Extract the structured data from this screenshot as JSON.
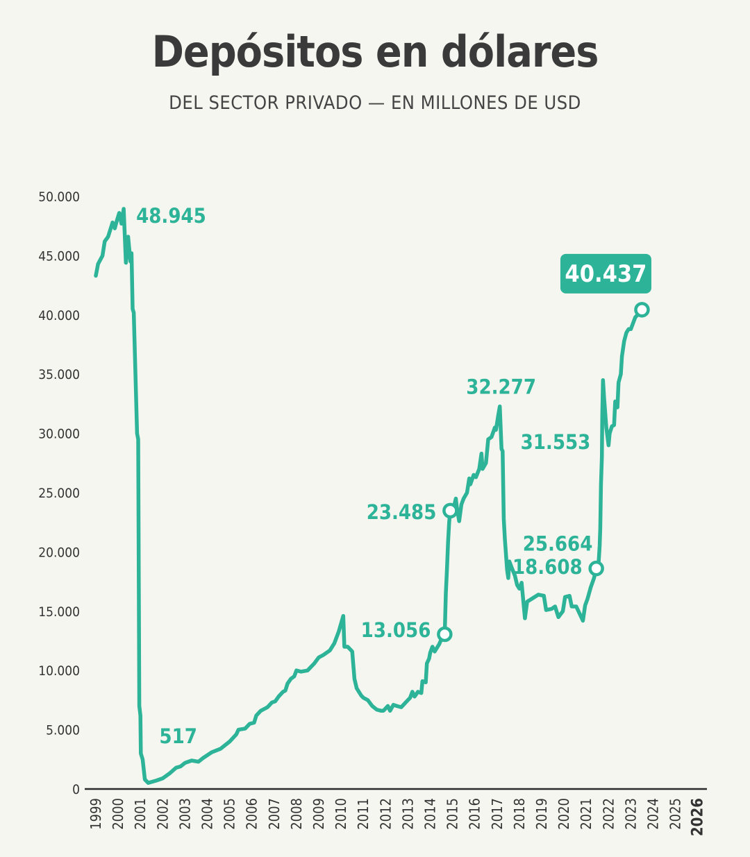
{
  "colors": {
    "line": "#2cb398",
    "background": "#f5f6f0",
    "title": "#3a3a3a",
    "axis": "#333333"
  },
  "chart_data": {
    "type": "line",
    "title": "Depósitos en dólares",
    "subtitle": "DEL SECTOR PRIVADO — EN MILLONES DE USD",
    "xlabel": "",
    "ylabel": "",
    "ylim": [
      0,
      50000
    ],
    "grid": false,
    "y_ticks": [
      0,
      5000,
      10000,
      15000,
      20000,
      25000,
      30000,
      35000,
      40000,
      45000,
      50000
    ],
    "y_tick_labels": [
      "0",
      "5.000",
      "10.000",
      "15.000",
      "20.000",
      "25.000",
      "30.000",
      "35.000",
      "40.000",
      "45.000",
      "50.000"
    ],
    "x_tick_labels": [
      "1999",
      "2000",
      "2001",
      "2002",
      "2003",
      "2004",
      "2005",
      "2006",
      "2007",
      "2008",
      "2009",
      "2010",
      "2011",
      "2012",
      "2013",
      "2014",
      "2015",
      "2016",
      "2017",
      "2018",
      "2019",
      "2020",
      "2021",
      "2022",
      "2023",
      "2024",
      "2025",
      "2026"
    ],
    "x_tick_bold": [
      "2026"
    ],
    "series": [
      {
        "points": [
          [
            1999.0,
            43300
          ],
          [
            1999.1,
            44300
          ],
          [
            1999.3,
            45000
          ],
          [
            1999.4,
            46200
          ],
          [
            1999.55,
            46600
          ],
          [
            1999.65,
            47200
          ],
          [
            1999.75,
            47800
          ],
          [
            1999.85,
            47300
          ],
          [
            1999.95,
            48000
          ],
          [
            2000.05,
            48600
          ],
          [
            2000.15,
            47700
          ],
          [
            2000.25,
            48945
          ],
          [
            2000.35,
            44400
          ],
          [
            2000.45,
            46600
          ],
          [
            2000.55,
            44500
          ],
          [
            2000.6,
            45200
          ],
          [
            2000.65,
            40500
          ],
          [
            2000.7,
            40200
          ],
          [
            2000.85,
            30000
          ],
          [
            2000.9,
            29500
          ],
          [
            2000.95,
            7000
          ],
          [
            2001.0,
            6200
          ],
          [
            2001.02,
            3000
          ],
          [
            2001.1,
            2500
          ],
          [
            2001.2,
            800
          ],
          [
            2001.35,
            517
          ],
          [
            2001.7,
            700
          ],
          [
            2002.0,
            900
          ],
          [
            2002.3,
            1300
          ],
          [
            2002.6,
            1800
          ],
          [
            2002.8,
            1900
          ],
          [
            2003.0,
            2200
          ],
          [
            2003.3,
            2400
          ],
          [
            2003.6,
            2300
          ],
          [
            2003.8,
            2600
          ],
          [
            2004.2,
            3100
          ],
          [
            2004.6,
            3400
          ],
          [
            2005.0,
            4000
          ],
          [
            2005.3,
            4600
          ],
          [
            2005.4,
            5000
          ],
          [
            2005.7,
            5100
          ],
          [
            2005.9,
            5500
          ],
          [
            2006.1,
            5600
          ],
          [
            2006.2,
            6200
          ],
          [
            2006.4,
            6600
          ],
          [
            2006.7,
            6900
          ],
          [
            2006.9,
            7300
          ],
          [
            2007.05,
            7400
          ],
          [
            2007.2,
            7800
          ],
          [
            2007.4,
            8200
          ],
          [
            2007.5,
            8300
          ],
          [
            2007.6,
            8900
          ],
          [
            2007.75,
            9300
          ],
          [
            2007.9,
            9500
          ],
          [
            2008.0,
            10000
          ],
          [
            2008.2,
            9900
          ],
          [
            2008.5,
            10000
          ],
          [
            2008.8,
            10600
          ],
          [
            2009.0,
            11100
          ],
          [
            2009.2,
            11300
          ],
          [
            2009.5,
            11700
          ],
          [
            2009.7,
            12300
          ],
          [
            2009.9,
            13300
          ],
          [
            2010.1,
            14600
          ],
          [
            2010.15,
            12000
          ],
          [
            2010.3,
            12000
          ],
          [
            2010.5,
            11600
          ],
          [
            2010.6,
            9300
          ],
          [
            2010.7,
            8500
          ],
          [
            2010.9,
            7900
          ],
          [
            2011.0,
            7700
          ],
          [
            2011.2,
            7500
          ],
          [
            2011.4,
            7000
          ],
          [
            2011.6,
            6700
          ],
          [
            2011.8,
            6600
          ],
          [
            2011.9,
            6600
          ],
          [
            2012.0,
            6800
          ],
          [
            2012.1,
            7000
          ],
          [
            2012.2,
            6600
          ],
          [
            2012.35,
            7100
          ],
          [
            2012.5,
            7000
          ],
          [
            2012.7,
            6900
          ],
          [
            2012.9,
            7300
          ],
          [
            2013.1,
            7700
          ],
          [
            2013.2,
            8200
          ],
          [
            2013.3,
            7800
          ],
          [
            2013.45,
            8200
          ],
          [
            2013.6,
            8100
          ],
          [
            2013.65,
            9100
          ],
          [
            2013.8,
            9000
          ],
          [
            2013.85,
            10600
          ],
          [
            2013.95,
            11000
          ],
          [
            2014.0,
            11500
          ],
          [
            2014.1,
            12000
          ],
          [
            2014.2,
            11600
          ],
          [
            2014.4,
            12200
          ],
          [
            2014.6,
            13056
          ],
          [
            2014.65,
            13056
          ],
          [
            2014.7,
            16500
          ],
          [
            2014.75,
            18500
          ],
          [
            2014.8,
            20800
          ],
          [
            2014.85,
            22500
          ],
          [
            2014.9,
            23485
          ],
          [
            2015.05,
            23700
          ],
          [
            2015.15,
            24500
          ],
          [
            2015.2,
            23700
          ],
          [
            2015.3,
            22600
          ],
          [
            2015.4,
            24000
          ],
          [
            2015.5,
            24500
          ],
          [
            2015.65,
            25000
          ],
          [
            2015.75,
            26200
          ],
          [
            2015.8,
            25700
          ],
          [
            2015.95,
            26500
          ],
          [
            2016.05,
            26300
          ],
          [
            2016.2,
            27000
          ],
          [
            2016.3,
            28300
          ],
          [
            2016.35,
            27000
          ],
          [
            2016.5,
            27500
          ],
          [
            2016.6,
            29500
          ],
          [
            2016.75,
            29700
          ],
          [
            2016.9,
            30500
          ],
          [
            2016.95,
            30300
          ],
          [
            2017.05,
            31500
          ],
          [
            2017.12,
            32277
          ],
          [
            2017.2,
            28700
          ],
          [
            2017.25,
            28500
          ],
          [
            2017.3,
            22800
          ],
          [
            2017.35,
            21100
          ],
          [
            2017.45,
            18500
          ],
          [
            2017.5,
            17800
          ],
          [
            2017.55,
            19200
          ],
          [
            2017.65,
            18700
          ],
          [
            2017.8,
            18000
          ],
          [
            2017.9,
            17200
          ],
          [
            2018.0,
            16900
          ],
          [
            2018.1,
            17400
          ],
          [
            2018.25,
            14400
          ],
          [
            2018.35,
            15800
          ],
          [
            2018.6,
            16100
          ],
          [
            2018.85,
            16400
          ],
          [
            2019.1,
            16300
          ],
          [
            2019.2,
            15100
          ],
          [
            2019.45,
            15200
          ],
          [
            2019.6,
            15400
          ],
          [
            2019.75,
            14500
          ],
          [
            2019.95,
            15000
          ],
          [
            2020.05,
            16200
          ],
          [
            2020.25,
            16300
          ],
          [
            2020.35,
            15400
          ],
          [
            2020.55,
            15400
          ],
          [
            2020.65,
            15000
          ],
          [
            2020.75,
            14600
          ],
          [
            2020.85,
            14200
          ],
          [
            2020.95,
            15500
          ],
          [
            2021.05,
            16000
          ],
          [
            2021.2,
            17000
          ],
          [
            2021.35,
            17800
          ],
          [
            2021.45,
            18608
          ],
          [
            2021.55,
            19000
          ],
          [
            2021.6,
            20500
          ],
          [
            2021.63,
            22000
          ],
          [
            2021.66,
            25664
          ],
          [
            2021.7,
            28000
          ],
          [
            2021.72,
            31553
          ],
          [
            2021.75,
            34500
          ],
          [
            2021.8,
            33000
          ],
          [
            2021.9,
            30500
          ],
          [
            2022.0,
            29000
          ],
          [
            2022.05,
            30000
          ],
          [
            2022.15,
            30600
          ],
          [
            2022.25,
            30700
          ],
          [
            2022.3,
            32700
          ],
          [
            2022.4,
            32200
          ],
          [
            2022.45,
            34300
          ],
          [
            2022.55,
            35000
          ],
          [
            2022.6,
            36500
          ],
          [
            2022.7,
            37800
          ],
          [
            2022.8,
            38500
          ],
          [
            2022.9,
            38800
          ],
          [
            2023.0,
            38800
          ],
          [
            2023.1,
            39300
          ],
          [
            2023.2,
            39800
          ],
          [
            2023.35,
            40100
          ],
          [
            2023.5,
            40437
          ]
        ]
      }
    ],
    "annotations": [
      {
        "text": "48.945",
        "x": 2000.25,
        "y": 48945,
        "boxed": false,
        "marker": false
      },
      {
        "text": "517",
        "x": 2001.35,
        "y": 517,
        "boxed": false,
        "marker": false
      },
      {
        "text": "13.056",
        "x": 2014.65,
        "y": 13056,
        "boxed": false,
        "marker": true
      },
      {
        "text": "23.485",
        "x": 2014.9,
        "y": 23485,
        "boxed": false,
        "marker": true
      },
      {
        "text": "32.277",
        "x": 2017.12,
        "y": 32277,
        "boxed": false,
        "marker": false
      },
      {
        "text": "31.553",
        "x": 2021.72,
        "y": 31553,
        "boxed": false,
        "marker": false
      },
      {
        "text": "25.664",
        "x": 2021.66,
        "y": 25664,
        "boxed": false,
        "marker": false
      },
      {
        "text": "18.608",
        "x": 2021.45,
        "y": 18608,
        "boxed": false,
        "marker": true
      },
      {
        "text": "40.437",
        "x": 2023.5,
        "y": 40437,
        "boxed": true,
        "marker": true
      }
    ]
  }
}
